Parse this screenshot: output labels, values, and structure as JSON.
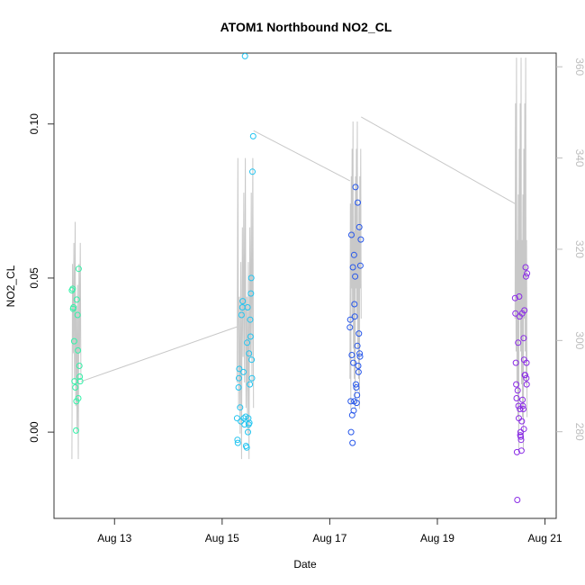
{
  "chart_data": {
    "type": "scatter",
    "title": "ATOM1 Northbound NO2_CL",
    "xlabel": "Date",
    "ylabel": "NO2_CL",
    "x_ticks": [
      "Aug 13",
      "Aug 15",
      "Aug 17",
      "Aug 19",
      "Aug 21"
    ],
    "y_ticks": [
      "0.00",
      "0.05",
      "0.10"
    ],
    "y2_ticks": [
      "280",
      "300",
      "320",
      "340",
      "360"
    ],
    "xlim": [
      "2023-08-11 21:00",
      "2023-08-21 05:00"
    ],
    "ylim": [
      -0.028,
      0.123
    ],
    "y2lim": [
      261,
      363
    ],
    "colors": {
      "aug12": "#33f2a8",
      "aug15": "#22c4f0",
      "aug17": "#2757ea",
      "aug20": "#8a2be6",
      "line": "#c8c8c8",
      "axis": "#333333",
      "right_axis": "#bdbdbd"
    },
    "series": [
      {
        "group": "Aug 12",
        "color_key": "aug12",
        "points": [
          [
            "2023-08-12 05:00",
            0.046
          ],
          [
            "2023-08-12 05:20",
            0.0465
          ],
          [
            "2023-08-12 05:40",
            0.0405
          ],
          [
            "2023-08-12 05:30",
            0.04
          ],
          [
            "2023-08-12 06:00",
            0.0295
          ],
          [
            "2023-08-12 06:10",
            0.0165
          ],
          [
            "2023-08-12 06:30",
            0.0145
          ],
          [
            "2023-08-12 07:00",
            0.01
          ],
          [
            "2023-08-12 07:10",
            0.043
          ],
          [
            "2023-08-12 07:30",
            0.038
          ],
          [
            "2023-08-12 07:40",
            0.0265
          ],
          [
            "2023-08-12 07:50",
            0.011
          ],
          [
            "2023-08-12 08:00",
            0.053
          ],
          [
            "2023-08-12 08:20",
            0.0215
          ],
          [
            "2023-08-12 08:30",
            0.018
          ],
          [
            "2023-08-12 08:40",
            0.0165
          ],
          [
            "2023-08-12 06:50",
            0.0005
          ]
        ]
      },
      {
        "group": "Aug 15",
        "color_key": "aug15",
        "points": [
          [
            "2023-08-15 06:40",
            0.0045
          ],
          [
            "2023-08-15 06:50",
            -0.0025
          ],
          [
            "2023-08-15 07:00",
            -0.0035
          ],
          [
            "2023-08-15 07:20",
            0.0145
          ],
          [
            "2023-08-15 07:30",
            0.0175
          ],
          [
            "2023-08-15 07:40",
            0.0205
          ],
          [
            "2023-08-15 08:00",
            0.008
          ],
          [
            "2023-08-15 08:20",
            0.0035
          ],
          [
            "2023-08-15 08:40",
            0.038
          ],
          [
            "2023-08-15 09:00",
            0.0405
          ],
          [
            "2023-08-15 09:10",
            0.0425
          ],
          [
            "2023-08-15 09:30",
            0.0195
          ],
          [
            "2023-08-15 09:40",
            0.0045
          ],
          [
            "2023-08-15 10:00",
            0.0025
          ],
          [
            "2023-08-15 10:10",
            0.122
          ],
          [
            "2023-08-15 10:30",
            0.005
          ],
          [
            "2023-08-15 10:40",
            -0.0045
          ],
          [
            "2023-08-15 11:00",
            -0.005
          ],
          [
            "2023-08-15 11:10",
            0.029
          ],
          [
            "2023-08-15 11:20",
            0.0405
          ],
          [
            "2023-08-15 11:40",
            0.0045
          ],
          [
            "2023-08-15 11:50",
            0.0025
          ],
          [
            "2023-08-15 12:00",
            0.0255
          ],
          [
            "2023-08-15 12:10",
            0.003
          ],
          [
            "2023-08-15 12:20",
            0.0155
          ],
          [
            "2023-08-15 12:30",
            0.0365
          ],
          [
            "2023-08-15 12:40",
            0.031
          ],
          [
            "2023-08-15 12:50",
            0.045
          ],
          [
            "2023-08-15 13:00",
            0.05
          ],
          [
            "2023-08-15 13:10",
            0.0235
          ],
          [
            "2023-08-15 13:20",
            0.0175
          ],
          [
            "2023-08-15 13:30",
            0.0845
          ],
          [
            "2023-08-15 13:50",
            0.096
          ],
          [
            "2023-08-15 11:30",
            0.0
          ]
        ]
      },
      {
        "group": "Aug 17",
        "color_key": "aug17",
        "points": [
          [
            "2023-08-17 09:00",
            0.034
          ],
          [
            "2023-08-17 09:10",
            0.0365
          ],
          [
            "2023-08-17 09:20",
            0.01
          ],
          [
            "2023-08-17 09:30",
            0.0
          ],
          [
            "2023-08-17 09:40",
            0.064
          ],
          [
            "2023-08-17 09:50",
            0.025
          ],
          [
            "2023-08-17 10:00",
            0.0055
          ],
          [
            "2023-08-17 10:10",
            -0.0035
          ],
          [
            "2023-08-17 10:20",
            0.0535
          ],
          [
            "2023-08-17 10:30",
            0.0225
          ],
          [
            "2023-08-17 10:40",
            0.007
          ],
          [
            "2023-08-17 10:50",
            0.0575
          ],
          [
            "2023-08-17 11:00",
            0.0415
          ],
          [
            "2023-08-17 11:10",
            0.0375
          ],
          [
            "2023-08-17 11:20",
            0.0505
          ],
          [
            "2023-08-17 11:30",
            0.0795
          ],
          [
            "2023-08-17 11:40",
            0.0155
          ],
          [
            "2023-08-17 11:50",
            0.0145
          ],
          [
            "2023-08-17 12:00",
            0.0095
          ],
          [
            "2023-08-17 12:10",
            0.012
          ],
          [
            "2023-08-17 12:20",
            0.028
          ],
          [
            "2023-08-17 12:30",
            0.0745
          ],
          [
            "2023-08-17 12:40",
            0.0215
          ],
          [
            "2023-08-17 12:50",
            0.0195
          ],
          [
            "2023-08-17 13:00",
            0.032
          ],
          [
            "2023-08-17 13:10",
            0.0665
          ],
          [
            "2023-08-17 13:20",
            0.0255
          ],
          [
            "2023-08-17 13:30",
            0.0245
          ],
          [
            "2023-08-17 13:40",
            0.054
          ],
          [
            "2023-08-17 13:50",
            0.0625
          ],
          [
            "2023-08-17 10:55",
            0.01
          ]
        ]
      },
      {
        "group": "Aug 20",
        "color_key": "aug20",
        "points": [
          [
            "2023-08-20 10:40",
            0.0435
          ],
          [
            "2023-08-20 10:50",
            0.0385
          ],
          [
            "2023-08-20 11:00",
            0.0225
          ],
          [
            "2023-08-20 11:10",
            0.0155
          ],
          [
            "2023-08-20 11:20",
            0.011
          ],
          [
            "2023-08-20 11:30",
            -0.0065
          ],
          [
            "2023-08-20 11:40",
            -0.022
          ],
          [
            "2023-08-20 11:50",
            0.0135
          ],
          [
            "2023-08-20 12:00",
            0.029
          ],
          [
            "2023-08-20 12:10",
            0.0085
          ],
          [
            "2023-08-20 12:20",
            0.0045
          ],
          [
            "2023-08-20 12:30",
            0.044
          ],
          [
            "2023-08-20 12:40",
            0.0375
          ],
          [
            "2023-08-20 12:50",
            0.0075
          ],
          [
            "2023-08-20 13:00",
            -0.001
          ],
          [
            "2023-08-20 13:10",
            -0.0015
          ],
          [
            "2023-08-20 13:20",
            -0.0025
          ],
          [
            "2023-08-20 13:30",
            -0.006
          ],
          [
            "2023-08-20 13:40",
            0.0035
          ],
          [
            "2023-08-20 13:50",
            0.0385
          ],
          [
            "2023-08-20 14:00",
            0.0105
          ],
          [
            "2023-08-20 14:10",
            0.0085
          ],
          [
            "2023-08-20 14:20",
            0.0075
          ],
          [
            "2023-08-20 14:30",
            0.0305
          ],
          [
            "2023-08-20 14:40",
            0.0235
          ],
          [
            "2023-08-20 14:50",
            0.0395
          ],
          [
            "2023-08-20 15:00",
            0.0185
          ],
          [
            "2023-08-20 15:10",
            0.0185
          ],
          [
            "2023-08-20 15:20",
            0.0535
          ],
          [
            "2023-08-20 15:30",
            0.0505
          ],
          [
            "2023-08-20 15:40",
            0.0175
          ],
          [
            "2023-08-20 15:50",
            0.0155
          ],
          [
            "2023-08-20 15:45",
            0.0225
          ],
          [
            "2023-08-20 16:00",
            0.0515
          ],
          [
            "2023-08-20 14:35",
            0.001
          ],
          [
            "2023-08-20 13:05",
            0.0
          ]
        ]
      }
    ],
    "line_series": {
      "axis": "right",
      "color_key": "line",
      "sessions": [
        {
          "start": "2023-08-12 05:00",
          "end": "2023-08-12 09:00",
          "min": 274,
          "max": 326,
          "baseline": 303,
          "wiggles": 14
        },
        {
          "start": "2023-08-15 06:40",
          "end": "2023-08-15 14:00",
          "min": 274,
          "max": 340,
          "baseline": 302,
          "wiggles": 22
        },
        {
          "start": "2023-08-17 09:00",
          "end": "2023-08-17 14:00",
          "min": 285,
          "max": 348,
          "baseline": 318,
          "wiggles": 26
        },
        {
          "start": "2023-08-20 10:40",
          "end": "2023-08-20 16:00",
          "min": 276,
          "max": 362,
          "baseline": 312,
          "wiggles": 26
        }
      ],
      "connectors": [
        [
          "2023-08-12 09:00",
          291,
          "2023-08-15 06:40",
          303
        ],
        [
          "2023-08-15 14:00",
          346,
          "2023-08-17 09:00",
          335
        ],
        [
          "2023-08-17 14:00",
          349,
          "2023-08-20 10:40",
          330
        ]
      ]
    }
  }
}
